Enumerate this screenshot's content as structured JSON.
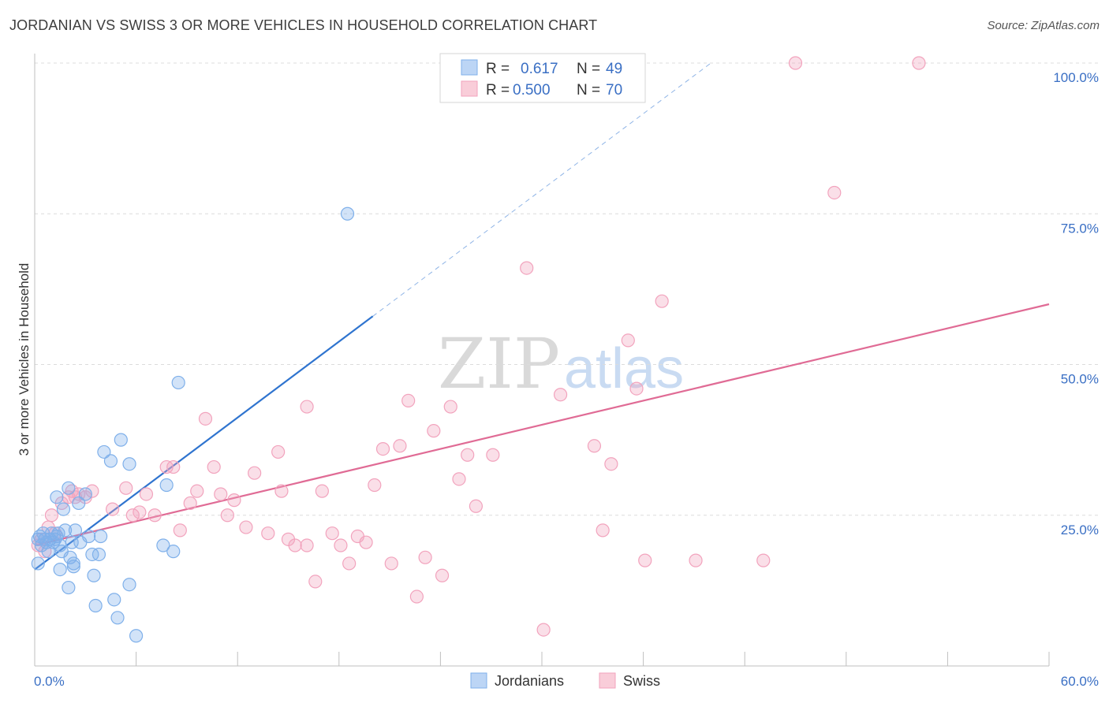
{
  "title": "JORDANIAN VS SWISS 3 OR MORE VEHICLES IN HOUSEHOLD CORRELATION CHART",
  "source": "Source: ZipAtlas.com",
  "watermark": {
    "zip": "ZIP",
    "atlas": "atlas"
  },
  "chart_data": {
    "type": "scatter",
    "title": "JORDANIAN VS SWISS 3 OR MORE VEHICLES IN HOUSEHOLD CORRELATION CHART",
    "xlabel": "",
    "ylabel": "3 or more Vehicles in Household",
    "xlim": [
      0,
      60
    ],
    "ylim": [
      0,
      100
    ],
    "x_tick_labels": [
      "0.0%",
      "60.0%"
    ],
    "y_ticks": [
      25,
      50,
      75,
      100
    ],
    "y_tick_labels": [
      "25.0%",
      "50.0%",
      "75.0%",
      "100.0%"
    ],
    "grid": true,
    "legend_position": "top-center",
    "series": [
      {
        "name": "Jordanians",
        "color": "#7fb0ea",
        "line_color": "#2f74cf",
        "R": "0.617",
        "N": "49",
        "trend": {
          "x0": 0,
          "y0": 16,
          "x1": 20,
          "y1": 58,
          "dashed_to_x": 40,
          "dashed_to_y": 100
        },
        "points": [
          [
            0.2,
            21
          ],
          [
            0.3,
            21.5
          ],
          [
            0.4,
            20
          ],
          [
            0.5,
            22
          ],
          [
            0.6,
            21
          ],
          [
            0.7,
            20.5
          ],
          [
            0.8,
            19
          ],
          [
            0.9,
            21
          ],
          [
            1,
            22
          ],
          [
            1.1,
            20.5
          ],
          [
            1.2,
            21
          ],
          [
            1.3,
            21.5
          ],
          [
            1.4,
            22
          ],
          [
            1.5,
            20
          ],
          [
            1.6,
            19
          ],
          [
            1.7,
            26
          ],
          [
            1.8,
            22.5
          ],
          [
            2,
            29.5
          ],
          [
            2.1,
            18
          ],
          [
            2.2,
            20.5
          ],
          [
            2.3,
            17
          ],
          [
            2.4,
            22.5
          ],
          [
            2.6,
            27
          ],
          [
            2.7,
            20.5
          ],
          [
            1.3,
            28
          ],
          [
            3,
            28.5
          ],
          [
            3.2,
            21.5
          ],
          [
            3.4,
            18.5
          ],
          [
            3.5,
            15
          ],
          [
            3.6,
            10
          ],
          [
            3.8,
            18.5
          ],
          [
            3.9,
            21.5
          ],
          [
            4.1,
            35.5
          ],
          [
            4.5,
            34
          ],
          [
            4.7,
            11
          ],
          [
            4.9,
            8
          ],
          [
            5.1,
            37.5
          ],
          [
            5.6,
            33.5
          ],
          [
            5.6,
            13.5
          ],
          [
            6,
            5
          ],
          [
            7.6,
            20
          ],
          [
            7.8,
            30
          ],
          [
            8.2,
            19
          ],
          [
            8.5,
            47
          ],
          [
            18.5,
            75
          ],
          [
            0.2,
            17
          ],
          [
            1.5,
            16
          ],
          [
            2,
            13
          ],
          [
            2.3,
            16.5
          ]
        ]
      },
      {
        "name": "Swiss",
        "color": "#f2a3bd",
        "line_color": "#e06b95",
        "R": "0.500",
        "N": "70",
        "trend": {
          "x0": 0,
          "y0": 20,
          "x1": 60,
          "y1": 60
        },
        "points": [
          [
            0.2,
            20
          ],
          [
            0.4,
            21
          ],
          [
            0.6,
            19
          ],
          [
            0.8,
            23
          ],
          [
            1,
            25
          ],
          [
            1.2,
            22
          ],
          [
            1.6,
            27
          ],
          [
            2,
            28
          ],
          [
            2.2,
            29
          ],
          [
            2.4,
            28
          ],
          [
            2.6,
            28.5
          ],
          [
            3,
            28
          ],
          [
            3.4,
            29
          ],
          [
            4.6,
            26
          ],
          [
            5.4,
            29.5
          ],
          [
            5.8,
            25
          ],
          [
            6.2,
            25.5
          ],
          [
            6.6,
            28.5
          ],
          [
            7.1,
            25
          ],
          [
            7.8,
            33
          ],
          [
            8.2,
            33
          ],
          [
            8.6,
            22.5
          ],
          [
            9.2,
            27
          ],
          [
            9.6,
            29
          ],
          [
            10.1,
            41
          ],
          [
            10.6,
            33
          ],
          [
            11,
            28.5
          ],
          [
            11.4,
            25
          ],
          [
            11.8,
            27.5
          ],
          [
            12.5,
            23
          ],
          [
            13,
            32
          ],
          [
            13.8,
            22
          ],
          [
            14.4,
            35.5
          ],
          [
            14.6,
            29
          ],
          [
            15,
            21
          ],
          [
            15.4,
            20
          ],
          [
            16.1,
            20
          ],
          [
            16.1,
            43
          ],
          [
            16.6,
            14
          ],
          [
            17,
            29
          ],
          [
            17.6,
            22
          ],
          [
            18.1,
            20
          ],
          [
            18.6,
            17
          ],
          [
            19.1,
            21.5
          ],
          [
            19.6,
            20.5
          ],
          [
            20.1,
            30
          ],
          [
            20.6,
            36
          ],
          [
            21.1,
            17
          ],
          [
            21.6,
            36.5
          ],
          [
            22.1,
            44
          ],
          [
            22.6,
            11.5
          ],
          [
            23.1,
            18
          ],
          [
            23.6,
            39
          ],
          [
            24.1,
            15
          ],
          [
            24.6,
            43
          ],
          [
            25.1,
            31
          ],
          [
            25.6,
            35
          ],
          [
            26.1,
            26.5
          ],
          [
            27.1,
            35
          ],
          [
            29.1,
            66
          ],
          [
            30.1,
            6
          ],
          [
            31.1,
            45
          ],
          [
            33.1,
            36.5
          ],
          [
            33.6,
            22.5
          ],
          [
            34.1,
            33.5
          ],
          [
            35.1,
            54
          ],
          [
            35.6,
            46
          ],
          [
            36.1,
            17.5
          ],
          [
            37.1,
            60.5
          ],
          [
            39.1,
            17.5
          ]
        ],
        "extra_points": [
          [
            43.1,
            17.5
          ],
          [
            45,
            100
          ],
          [
            47.3,
            78.5
          ],
          [
            52.3,
            100
          ]
        ]
      }
    ]
  },
  "legend": {
    "r_label": "R =",
    "n_label": "N =",
    "jordanians": {
      "r": "0.617",
      "n": "49"
    },
    "swiss": {
      "r": "0.500",
      "n": "70"
    }
  },
  "bottom_legend": {
    "jordanians": "Jordanians",
    "swiss": "Swiss"
  }
}
